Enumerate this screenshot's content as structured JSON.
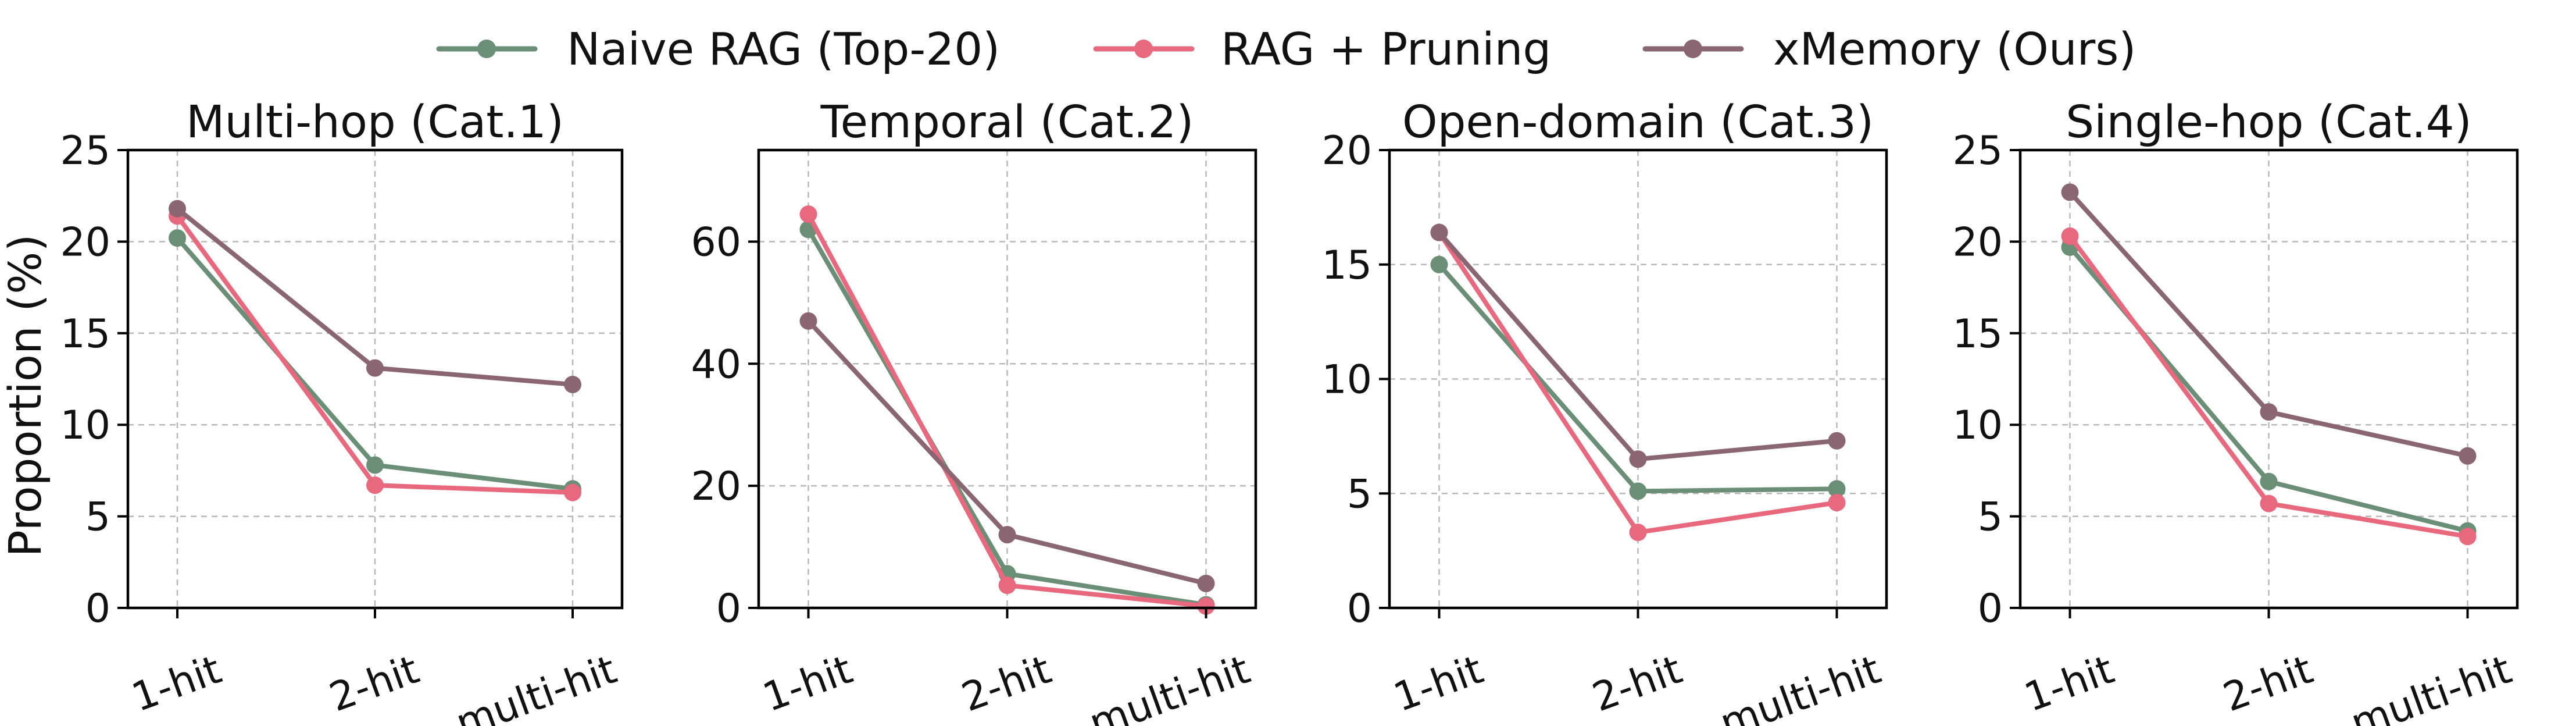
{
  "chart_data": {
    "type": "line",
    "ylabel": "Proportion (%)",
    "categories": [
      "1-hit",
      "2-hit",
      "multi-hit"
    ],
    "legend": {
      "placement": "top-center",
      "series": [
        {
          "name": "Naive RAG (Top-20)",
          "color": "#6b8f76"
        },
        {
          "name": "RAG + Pruning",
          "color": "#e8697e"
        },
        {
          "name": "xMemory (Ours)",
          "color": "#8a6672"
        }
      ]
    },
    "grid": true,
    "panels": [
      {
        "title": "Multi-hop (Cat.1)",
        "ylim": [
          0,
          25
        ],
        "yticks": [
          0,
          5,
          10,
          15,
          20,
          25
        ],
        "series": [
          {
            "name": "Naive RAG (Top-20)",
            "values": [
              20.2,
              7.8,
              6.5
            ]
          },
          {
            "name": "RAG + Pruning",
            "values": [
              21.4,
              6.7,
              6.3
            ]
          },
          {
            "name": "xMemory (Ours)",
            "values": [
              21.8,
              13.1,
              12.2
            ]
          }
        ]
      },
      {
        "title": "Temporal (Cat.2)",
        "ylim": [
          0,
          75
        ],
        "yticks": [
          0,
          20,
          40,
          60
        ],
        "series": [
          {
            "name": "Naive RAG (Top-20)",
            "values": [
              62.0,
              5.6,
              0.5
            ]
          },
          {
            "name": "RAG + Pruning",
            "values": [
              64.5,
              3.7,
              0.3
            ]
          },
          {
            "name": "xMemory (Ours)",
            "values": [
              47.0,
              12.0,
              4.0
            ]
          }
        ]
      },
      {
        "title": "Open-domain (Cat.3)",
        "ylim": [
          0,
          20
        ],
        "yticks": [
          0,
          5,
          10,
          15,
          20
        ],
        "series": [
          {
            "name": "Naive RAG (Top-20)",
            "values": [
              15.0,
              5.1,
              5.2
            ]
          },
          {
            "name": "RAG + Pruning",
            "values": [
              16.4,
              3.3,
              4.6
            ]
          },
          {
            "name": "xMemory (Ours)",
            "values": [
              16.4,
              6.5,
              7.3
            ]
          }
        ]
      },
      {
        "title": "Single-hop (Cat.4)",
        "ylim": [
          0,
          25
        ],
        "yticks": [
          0,
          5,
          10,
          15,
          20,
          25
        ],
        "series": [
          {
            "name": "Naive RAG (Top-20)",
            "values": [
              19.7,
              6.9,
              4.2
            ]
          },
          {
            "name": "RAG + Pruning",
            "values": [
              20.3,
              5.7,
              3.9
            ]
          },
          {
            "name": "xMemory (Ours)",
            "values": [
              22.7,
              10.7,
              8.3
            ]
          }
        ]
      }
    ]
  }
}
